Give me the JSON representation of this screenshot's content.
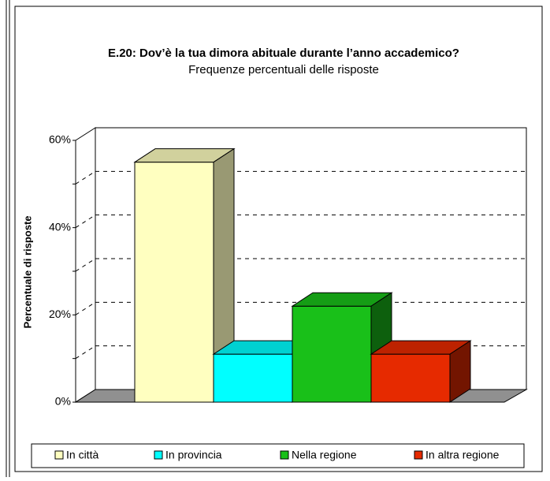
{
  "chart_data": {
    "type": "bar3d",
    "title": "E.20: Dov’è la tua dimora abituale durante l’anno accademico?",
    "subtitle": "Frequenze percentuali delle risposte",
    "y_label": "Percentuale di risposte",
    "categories": [
      "In città",
      "In provincia",
      "Nella regione",
      "In altra regione"
    ],
    "values": [
      55,
      11,
      22,
      11
    ],
    "colors": [
      "#ffffc0",
      "#00ffff",
      "#19c019",
      "#e62a00"
    ],
    "ylim": [
      0,
      60
    ],
    "yticks": [
      {
        "value": 0,
        "label": "0%"
      },
      {
        "value": 20,
        "label": "20%"
      },
      {
        "value": 40,
        "label": "40%"
      },
      {
        "value": 60,
        "label": "60%"
      }
    ],
    "minor_yticks": [
      10,
      30,
      50
    ],
    "grid": true,
    "legend": "bottom"
  }
}
